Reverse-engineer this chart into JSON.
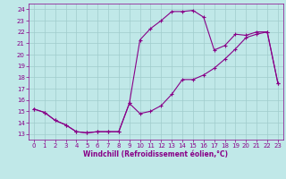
{
  "xlabel": "Windchill (Refroidissement éolien,°C)",
  "xlim": [
    -0.5,
    23.5
  ],
  "ylim": [
    12.5,
    24.5
  ],
  "xticks": [
    0,
    1,
    2,
    3,
    4,
    5,
    6,
    7,
    8,
    9,
    10,
    11,
    12,
    13,
    14,
    15,
    16,
    17,
    18,
    19,
    20,
    21,
    22,
    23
  ],
  "yticks": [
    13,
    14,
    15,
    16,
    17,
    18,
    19,
    20,
    21,
    22,
    23,
    24
  ],
  "bg_color": "#c0e8e8",
  "grid_color": "#a0cccc",
  "line_color": "#880088",
  "line1_x": [
    0,
    1,
    2,
    3,
    4,
    5,
    6,
    7,
    8,
    9,
    10,
    11,
    12,
    13,
    14,
    15,
    16,
    17,
    18,
    19,
    20,
    21,
    22,
    23
  ],
  "line1_y": [
    15.2,
    14.9,
    14.2,
    13.8,
    13.2,
    13.1,
    13.2,
    13.2,
    13.2,
    15.7,
    14.8,
    15.0,
    15.5,
    16.5,
    17.8,
    17.8,
    18.2,
    18.8,
    19.6,
    20.5,
    21.5,
    21.8,
    22.0,
    17.5
  ],
  "line2_x": [
    0,
    1,
    2,
    3,
    4,
    5,
    6,
    7,
    8,
    9,
    10,
    11,
    12,
    13,
    14,
    15,
    16,
    17,
    18,
    19,
    20,
    21,
    22,
    23
  ],
  "line2_y": [
    15.2,
    14.9,
    14.2,
    13.8,
    13.2,
    13.1,
    13.2,
    13.2,
    13.2,
    15.7,
    21.3,
    22.3,
    23.0,
    23.8,
    23.8,
    23.9,
    23.3,
    20.4,
    20.8,
    21.8,
    21.7,
    22.0,
    22.0,
    17.5
  ],
  "marker": "+",
  "markersize": 3.5,
  "linewidth": 0.8,
  "tick_fontsize": 5.0,
  "xlabel_fontsize": 5.5
}
